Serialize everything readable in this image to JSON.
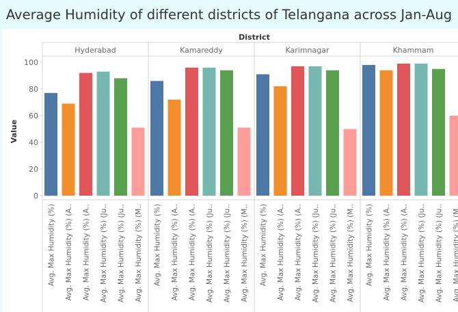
{
  "title": "Average Humidity of different districts of Telangana across Jan-Aug",
  "chart_data": {
    "type": "bar",
    "title": "Average Humidity of different districts of Telangana across Jan-Aug",
    "column_header": "District",
    "ylabel": "Value",
    "ylim": [
      0,
      100
    ],
    "yticks": [
      0,
      20,
      40,
      60,
      80,
      100
    ],
    "grid": false,
    "categories": [
      "Avg. Max Humidity (%)",
      "Avg. Max Humidity (%) (A..",
      "Avg. Max Humidity (%) (A..",
      "Avg. Max Humidity (%) (Ju..",
      "Avg. Max Humidity (%) (Ju..",
      "Avg. Max Humidity (%) (M.."
    ],
    "bar_colors": [
      "#4e79a7",
      "#f28e2b",
      "#e15759",
      "#76b7b2",
      "#59a14f",
      "#ff9d9a"
    ],
    "panels": [
      {
        "name": "Hyderabad",
        "values": [
          77,
          69,
          92,
          93,
          88,
          51
        ]
      },
      {
        "name": "Kamareddy",
        "values": [
          86,
          72,
          96,
          96,
          94,
          51
        ]
      },
      {
        "name": "Karimnagar",
        "values": [
          91,
          82,
          97,
          97,
          94,
          50
        ]
      },
      {
        "name": "Khammam",
        "values": [
          98,
          94,
          99,
          99,
          95,
          60
        ]
      }
    ]
  }
}
